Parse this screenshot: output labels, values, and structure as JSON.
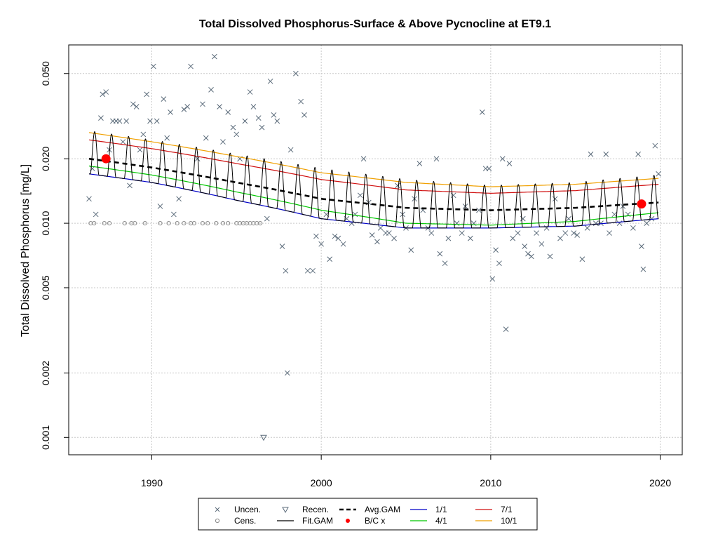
{
  "chart_data": {
    "type": "scatter",
    "title": "Total Dissolved Phosphorus-Surface & Above Pycnocline at ET9.1",
    "xlabel": "",
    "ylabel": "Total Dissolved Phosphorus [mg/L]",
    "y_scale": "log",
    "xlim": [
      1985.1,
      2021.3
    ],
    "ylim": [
      0.00083,
      0.068
    ],
    "grid": true,
    "legend_position": "bottom-center",
    "x_ticks": [
      {
        "value": 1990,
        "label": "1990"
      },
      {
        "value": 2000,
        "label": "2000"
      },
      {
        "value": 2010,
        "label": "2010"
      },
      {
        "value": 2020,
        "label": "2020"
      }
    ],
    "y_ticks": [
      {
        "value": 0.001,
        "label": "0.001"
      },
      {
        "value": 0.002,
        "label": "0.002"
      },
      {
        "value": 0.005,
        "label": "0.005"
      },
      {
        "value": 0.01,
        "label": "0.010"
      },
      {
        "value": 0.02,
        "label": "0.020"
      },
      {
        "value": 0.05,
        "label": "0.050"
      }
    ],
    "legend": [
      {
        "key": "uncen",
        "label": "Uncen.",
        "symbol": "x",
        "color": "#5b6b7a"
      },
      {
        "key": "cens",
        "label": "Cens.",
        "symbol": "circle",
        "color": "#8a8a8a"
      },
      {
        "key": "recen",
        "label": "Recen.",
        "symbol": "triangle-down",
        "color": "#5b6b7a"
      },
      {
        "key": "fitgam",
        "label": "Fit.GAM",
        "symbol": "line",
        "color": "#000000"
      },
      {
        "key": "avggam",
        "label": "Avg.GAM",
        "symbol": "dashed",
        "color": "#000000"
      },
      {
        "key": "bc",
        "label": "B/C x",
        "symbol": "dot",
        "color": "#ff0000"
      },
      {
        "key": "d1",
        "label": "1/1",
        "symbol": "line",
        "color": "#0000c8"
      },
      {
        "key": "d4",
        "label": "4/1",
        "symbol": "line",
        "color": "#00c800"
      },
      {
        "key": "d7",
        "label": "7/1",
        "symbol": "line",
        "color": "#d01010"
      },
      {
        "key": "d10",
        "label": "10/1",
        "symbol": "line",
        "color": "#f0a000"
      }
    ],
    "series": [
      {
        "name": "Uncen.",
        "points": [
          [
            1986.3,
            0.013
          ],
          [
            1986.5,
            0.018
          ],
          [
            1986.7,
            0.011
          ],
          [
            1987.0,
            0.031
          ],
          [
            1987.1,
            0.04
          ],
          [
            1987.3,
            0.041
          ],
          [
            1987.5,
            0.022
          ],
          [
            1987.7,
            0.03
          ],
          [
            1987.9,
            0.03
          ],
          [
            1988.1,
            0.03
          ],
          [
            1988.3,
            0.024
          ],
          [
            1988.5,
            0.03
          ],
          [
            1988.7,
            0.015
          ],
          [
            1988.9,
            0.036
          ],
          [
            1989.1,
            0.035
          ],
          [
            1989.3,
            0.022
          ],
          [
            1989.5,
            0.026
          ],
          [
            1989.7,
            0.04
          ],
          [
            1989.9,
            0.03
          ],
          [
            1990.1,
            0.054
          ],
          [
            1990.3,
            0.03
          ],
          [
            1990.5,
            0.012
          ],
          [
            1990.7,
            0.038
          ],
          [
            1990.9,
            0.025
          ],
          [
            1991.1,
            0.033
          ],
          [
            1991.3,
            0.011
          ],
          [
            1991.6,
            0.013
          ],
          [
            1991.9,
            0.034
          ],
          [
            1992.1,
            0.035
          ],
          [
            1992.3,
            0.054
          ],
          [
            1992.7,
            0.02
          ],
          [
            1993.0,
            0.036
          ],
          [
            1993.2,
            0.025
          ],
          [
            1993.5,
            0.042
          ],
          [
            1993.7,
            0.06
          ],
          [
            1994.0,
            0.035
          ],
          [
            1994.2,
            0.024
          ],
          [
            1994.5,
            0.033
          ],
          [
            1994.8,
            0.028
          ],
          [
            1995.0,
            0.026
          ],
          [
            1995.2,
            0.02
          ],
          [
            1995.5,
            0.03
          ],
          [
            1995.8,
            0.041
          ],
          [
            1996.0,
            0.035
          ],
          [
            1996.3,
            0.031
          ],
          [
            1996.5,
            0.028
          ],
          [
            1996.8,
            0.0105
          ],
          [
            1997.0,
            0.046
          ],
          [
            1997.2,
            0.032
          ],
          [
            1997.4,
            0.03
          ],
          [
            1997.7,
            0.0078
          ],
          [
            1997.9,
            0.006
          ],
          [
            1998.0,
            0.002
          ],
          [
            1998.2,
            0.022
          ],
          [
            1998.5,
            0.05
          ],
          [
            1998.8,
            0.037
          ],
          [
            1999.0,
            0.032
          ],
          [
            1999.2,
            0.006
          ],
          [
            1999.5,
            0.006
          ],
          [
            1999.7,
            0.0087
          ],
          [
            2000.0,
            0.008
          ],
          [
            2000.3,
            0.011
          ],
          [
            2000.5,
            0.0068
          ],
          [
            2000.8,
            0.0087
          ],
          [
            2001.0,
            0.0085
          ],
          [
            2001.3,
            0.008
          ],
          [
            2001.5,
            0.0105
          ],
          [
            2001.8,
            0.01
          ],
          [
            2002.0,
            0.011
          ],
          [
            2002.3,
            0.0135
          ],
          [
            2002.5,
            0.02
          ],
          [
            2002.8,
            0.0125
          ],
          [
            2003.0,
            0.0088
          ],
          [
            2003.3,
            0.0082
          ],
          [
            2003.5,
            0.0095
          ],
          [
            2003.8,
            0.009
          ],
          [
            2004.0,
            0.009
          ],
          [
            2004.3,
            0.0085
          ],
          [
            2004.5,
            0.015
          ],
          [
            2004.8,
            0.011
          ],
          [
            2005.0,
            0.0095
          ],
          [
            2005.3,
            0.0075
          ],
          [
            2005.5,
            0.013
          ],
          [
            2005.8,
            0.019
          ],
          [
            2006.0,
            0.0115
          ],
          [
            2006.3,
            0.0095
          ],
          [
            2006.5,
            0.009
          ],
          [
            2006.8,
            0.02
          ],
          [
            2007.0,
            0.0072
          ],
          [
            2007.3,
            0.0065
          ],
          [
            2007.5,
            0.0085
          ],
          [
            2007.8,
            0.0135
          ],
          [
            2008.0,
            0.01
          ],
          [
            2008.3,
            0.009
          ],
          [
            2008.5,
            0.012
          ],
          [
            2008.8,
            0.0085
          ],
          [
            2009.0,
            0.01
          ],
          [
            2009.3,
            0.0115
          ],
          [
            2009.5,
            0.033
          ],
          [
            2009.7,
            0.018
          ],
          [
            2009.9,
            0.018
          ],
          [
            2010.1,
            0.0055
          ],
          [
            2010.3,
            0.0075
          ],
          [
            2010.5,
            0.0065
          ],
          [
            2010.7,
            0.02
          ],
          [
            2010.9,
            0.0032
          ],
          [
            2011.1,
            0.019
          ],
          [
            2011.3,
            0.0085
          ],
          [
            2011.6,
            0.009
          ],
          [
            2011.9,
            0.0105
          ],
          [
            2012.0,
            0.0078
          ],
          [
            2012.2,
            0.0072
          ],
          [
            2012.4,
            0.007
          ],
          [
            2012.7,
            0.009
          ],
          [
            2013.0,
            0.008
          ],
          [
            2013.3,
            0.0095
          ],
          [
            2013.5,
            0.007
          ],
          [
            2013.8,
            0.013
          ],
          [
            2014.1,
            0.0085
          ],
          [
            2014.4,
            0.009
          ],
          [
            2014.6,
            0.0105
          ],
          [
            2014.9,
            0.009
          ],
          [
            2015.1,
            0.0088
          ],
          [
            2015.4,
            0.0068
          ],
          [
            2015.7,
            0.0095
          ],
          [
            2015.9,
            0.021
          ],
          [
            2016.2,
            0.01
          ],
          [
            2016.5,
            0.01
          ],
          [
            2016.8,
            0.021
          ],
          [
            2017.0,
            0.009
          ],
          [
            2017.3,
            0.011
          ],
          [
            2017.6,
            0.01
          ],
          [
            2017.8,
            0.012
          ],
          [
            2018.1,
            0.011
          ],
          [
            2018.4,
            0.0095
          ],
          [
            2018.7,
            0.021
          ],
          [
            2018.9,
            0.0078
          ],
          [
            2019.0,
            0.0061
          ],
          [
            2019.2,
            0.01
          ],
          [
            2019.5,
            0.0105
          ],
          [
            2019.7,
            0.023
          ],
          [
            2019.9,
            0.017
          ]
        ]
      },
      {
        "name": "Cens.",
        "points": [
          [
            1986.4,
            0.01
          ],
          [
            1986.6,
            0.01
          ],
          [
            1987.2,
            0.01
          ],
          [
            1987.5,
            0.01
          ],
          [
            1988.4,
            0.01
          ],
          [
            1988.8,
            0.01
          ],
          [
            1989.0,
            0.01
          ],
          [
            1989.6,
            0.01
          ],
          [
            1990.5,
            0.01
          ],
          [
            1991.0,
            0.01
          ],
          [
            1991.5,
            0.01
          ],
          [
            1991.9,
            0.01
          ],
          [
            1992.3,
            0.01
          ],
          [
            1992.5,
            0.01
          ],
          [
            1993.0,
            0.01
          ],
          [
            1993.3,
            0.01
          ],
          [
            1993.8,
            0.01
          ],
          [
            1994.2,
            0.01
          ],
          [
            1994.5,
            0.01
          ],
          [
            1995.0,
            0.01
          ],
          [
            1995.2,
            0.01
          ],
          [
            1995.4,
            0.01
          ],
          [
            1995.6,
            0.01
          ],
          [
            1995.8,
            0.01
          ],
          [
            1996.0,
            0.01
          ],
          [
            1996.2,
            0.01
          ],
          [
            1996.4,
            0.01
          ]
        ]
      },
      {
        "name": "Recen.",
        "points": [
          [
            1996.6,
            0.001
          ]
        ]
      },
      {
        "name": "B/C x",
        "points": [
          [
            1987.3,
            0.02
          ],
          [
            2018.9,
            0.0123
          ]
        ]
      },
      {
        "name": "1/1",
        "points": [
          [
            1986.3,
            0.017
          ],
          [
            1990,
            0.0155
          ],
          [
            1995,
            0.0128
          ],
          [
            2000,
            0.0105
          ],
          [
            2005,
            0.0095
          ],
          [
            2010,
            0.0095
          ],
          [
            2015,
            0.0097
          ],
          [
            2019.9,
            0.0105
          ]
        ]
      },
      {
        "name": "4/1",
        "points": [
          [
            1986.3,
            0.0185
          ],
          [
            1990,
            0.0168
          ],
          [
            1995,
            0.014
          ],
          [
            2000,
            0.0115
          ],
          [
            2005,
            0.01
          ],
          [
            2010,
            0.0098
          ],
          [
            2015,
            0.0102
          ],
          [
            2019.9,
            0.0112
          ]
        ]
      },
      {
        "name": "7/1",
        "points": [
          [
            1986.3,
            0.0245
          ],
          [
            1990,
            0.0223
          ],
          [
            1995,
            0.019
          ],
          [
            2000,
            0.016
          ],
          [
            2005,
            0.0143
          ],
          [
            2010,
            0.0138
          ],
          [
            2015,
            0.0142
          ],
          [
            2019.9,
            0.0152
          ]
        ]
      },
      {
        "name": "10/1",
        "points": [
          [
            1986.3,
            0.0265
          ],
          [
            1990,
            0.024
          ],
          [
            1995,
            0.0205
          ],
          [
            2000,
            0.0172
          ],
          [
            2005,
            0.0155
          ],
          [
            2010,
            0.0148
          ],
          [
            2015,
            0.0152
          ],
          [
            2019.9,
            0.0162
          ]
        ]
      },
      {
        "name": "Avg.GAM",
        "points": [
          [
            1986.3,
            0.02
          ],
          [
            1990,
            0.0182
          ],
          [
            1995,
            0.0155
          ],
          [
            2000,
            0.013
          ],
          [
            2005,
            0.0118
          ],
          [
            2010,
            0.0115
          ],
          [
            2015,
            0.0118
          ],
          [
            2019.9,
            0.0125
          ]
        ]
      },
      {
        "name": "Fit.GAM",
        "seasonal_min_points": [
          [
            1986.3,
            0.017
          ],
          [
            1990,
            0.0155
          ],
          [
            1995,
            0.0128
          ],
          [
            2000,
            0.0105
          ],
          [
            2005,
            0.0095
          ],
          [
            2010,
            0.0095
          ],
          [
            2015,
            0.0097
          ],
          [
            2019.9,
            0.0105
          ]
        ],
        "seasonal_max_points": [
          [
            1986.3,
            0.027
          ],
          [
            1990,
            0.0245
          ],
          [
            1995,
            0.021
          ],
          [
            2000,
            0.018
          ],
          [
            2005,
            0.016
          ],
          [
            2010,
            0.015
          ],
          [
            2015,
            0.0155
          ],
          [
            2019.9,
            0.0168
          ]
        ],
        "x_range": [
          1986.3,
          2019.9
        ]
      }
    ]
  }
}
